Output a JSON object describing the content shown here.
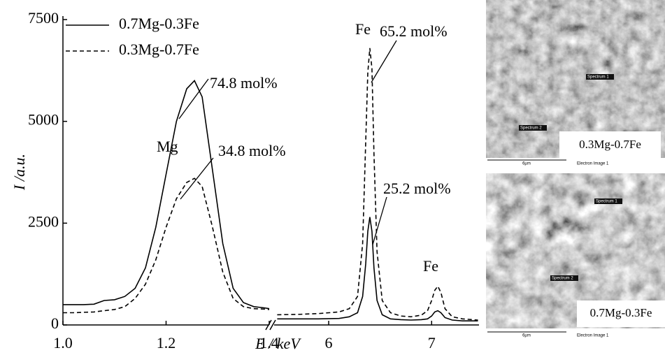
{
  "chart_data": [
    {
      "type": "line",
      "y_label": "I /a.u.",
      "x_label": "E / keV",
      "xlim": [
        1.0,
        1.4
      ],
      "xticks": [
        {
          "value": 1.0,
          "label": "1.0"
        },
        1.2,
        1.4
      ],
      "ylim": [
        0,
        7500
      ],
      "yticks": [
        0,
        2500,
        5000,
        7500
      ],
      "legend": "upper left",
      "x": [
        1.0,
        1.02,
        1.04,
        1.06,
        1.08,
        1.1,
        1.12,
        1.14,
        1.16,
        1.18,
        1.2,
        1.22,
        1.24,
        1.255,
        1.27,
        1.29,
        1.31,
        1.33,
        1.35,
        1.37,
        1.39,
        1.4
      ],
      "series": [
        {
          "name": "0.7Mg-0.3Fe",
          "color": "#000000",
          "dash": "solid",
          "values": [
            500,
            500,
            500,
            510,
            600,
            620,
            700,
            900,
            1400,
            2400,
            3700,
            5000,
            5800,
            6000,
            5600,
            3800,
            2000,
            900,
            550,
            450,
            420,
            400
          ]
        },
        {
          "name": "0.3Mg-0.7Fe",
          "color": "#000000",
          "dash": "dashed",
          "values": [
            300,
            300,
            310,
            320,
            350,
            380,
            450,
            650,
            1000,
            1600,
            2400,
            3100,
            3500,
            3600,
            3400,
            2400,
            1300,
            650,
            450,
            400,
            390,
            380
          ]
        }
      ],
      "annotations": [
        "74.8 mol%",
        "Mg",
        "34.8 mol%"
      ]
    },
    {
      "type": "line",
      "xlim": [
        5.47,
        7.46
      ],
      "xticks": [
        6,
        7
      ],
      "ylim": [
        0,
        7500
      ],
      "x": [
        5.5,
        5.7,
        5.9,
        6.1,
        6.2,
        6.28,
        6.33,
        6.36,
        6.38,
        6.4,
        6.42,
        6.44,
        6.47,
        6.52,
        6.6,
        6.7,
        6.8,
        6.9,
        6.96,
        7.0,
        7.03,
        7.06,
        7.09,
        7.13,
        7.2,
        7.3,
        7.45
      ],
      "series": [
        {
          "color": "#000000",
          "dash": "solid",
          "values": [
            150,
            150,
            150,
            160,
            200,
            300,
            700,
            1500,
            2300,
            2650,
            2300,
            1400,
            600,
            250,
            150,
            130,
            120,
            130,
            150,
            220,
            320,
            350,
            300,
            180,
            120,
            100,
            100
          ]
        },
        {
          "color": "#000000",
          "dash": "dashed",
          "values": [
            250,
            260,
            280,
            320,
            400,
            700,
            2000,
            4500,
            6200,
            6800,
            6300,
            4200,
            1800,
            600,
            300,
            220,
            200,
            240,
            350,
            600,
            850,
            950,
            800,
            400,
            200,
            150,
            120
          ]
        }
      ],
      "annotations": [
        "Fe",
        "65.2 mol%",
        "25.2 mol%",
        "Fe"
      ]
    }
  ],
  "images": [
    {
      "caption": "0.3Mg-0.7Fe",
      "labels": [
        "Spectrum 1",
        "Spectrum 2"
      ],
      "scale": "6µm",
      "footer": "Electron Image 1"
    },
    {
      "caption": "0.7Mg-0.3Fe",
      "labels": [
        "Spectrum 1",
        "Spectrum 2"
      ],
      "scale": "6µm",
      "footer": "Electron Image 1"
    }
  ]
}
